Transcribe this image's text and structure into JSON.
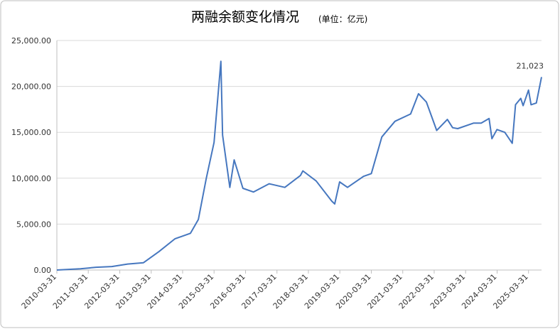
{
  "chart_data": {
    "type": "line",
    "title": "两融余额变化情况",
    "subtitle": "(单位：亿元)",
    "x": [
      "2010-03-31",
      "2010-12-31",
      "2011-06-30",
      "2011-12-30",
      "2012-06-29",
      "2012-12-31",
      "2013-06-28",
      "2013-12-31",
      "2014-06-30",
      "2014-09-30",
      "2014-12-31",
      "2015-03-31",
      "2015-06-18",
      "2015-07-08",
      "2015-09-30",
      "2015-11-20",
      "2016-02-29",
      "2016-06-30",
      "2016-12-30",
      "2017-06-30",
      "2017-12-29",
      "2018-01-26",
      "2018-06-29",
      "2018-12-28",
      "2019-01-31",
      "2019-03-29",
      "2019-06-28",
      "2019-12-31",
      "2020-03-31",
      "2020-07-31",
      "2020-12-31",
      "2021-06-30",
      "2021-09-30",
      "2021-12-31",
      "2022-04-29",
      "2022-08-31",
      "2022-10-31",
      "2022-12-30",
      "2023-06-30",
      "2023-09-28",
      "2023-12-29",
      "2024-01-31",
      "2024-03-29",
      "2024-06-28",
      "2024-09-23",
      "2024-10-31",
      "2024-12-31",
      "2025-01-27",
      "2025-03-31",
      "2025-04-30",
      "2025-06-30",
      "2025-08-29"
    ],
    "series": [
      {
        "name": "两融余额",
        "color": "#4677bf",
        "values": [
          0,
          130,
          300,
          380,
          650,
          800,
          2000,
          3400,
          4000,
          5500,
          10000,
          13900,
          22730,
          14700,
          9000,
          12000,
          8900,
          8500,
          9400,
          9000,
          10300,
          10800,
          9700,
          7500,
          7200,
          9600,
          9000,
          10200,
          10500,
          14500,
          16200,
          17000,
          19200,
          18300,
          15200,
          16400,
          15500,
          15400,
          16000,
          16000,
          16500,
          14300,
          15300,
          15000,
          13800,
          18000,
          18700,
          17900,
          19600,
          18000,
          18200,
          21023
        ],
        "value_labels": [
          null,
          null,
          null,
          null,
          null,
          null,
          null,
          null,
          null,
          null,
          null,
          null,
          null,
          null,
          null,
          null,
          null,
          null,
          null,
          null,
          null,
          null,
          null,
          null,
          null,
          null,
          null,
          null,
          null,
          null,
          null,
          null,
          null,
          null,
          null,
          null,
          null,
          null,
          null,
          null,
          null,
          null,
          null,
          null,
          null,
          null,
          null,
          null,
          null,
          null,
          null,
          "21,023"
        ]
      }
    ],
    "xlim": [
      "2010-03-31",
      "2025-08-29"
    ],
    "xticks": [
      "2010-03-31",
      "2011-03-31",
      "2012-03-31",
      "2013-03-31",
      "2014-03-31",
      "2015-03-31",
      "2016-03-31",
      "2017-03-31",
      "2018-03-31",
      "2019-03-31",
      "2020-03-31",
      "2021-03-31",
      "2022-03-31",
      "2023-03-31",
      "2024-03-31",
      "2025-03-31"
    ],
    "ylim": [
      0,
      25000
    ],
    "yticks": [
      {
        "value": 0,
        "label": "0.00"
      },
      {
        "value": 5000,
        "label": "5,000.00"
      },
      {
        "value": 10000,
        "label": "10,000.00"
      },
      {
        "value": 15000,
        "label": "15,000.00"
      },
      {
        "value": 20000,
        "label": "20,000.00"
      },
      {
        "value": 25000,
        "label": "25,000.00"
      }
    ],
    "grid": true
  }
}
